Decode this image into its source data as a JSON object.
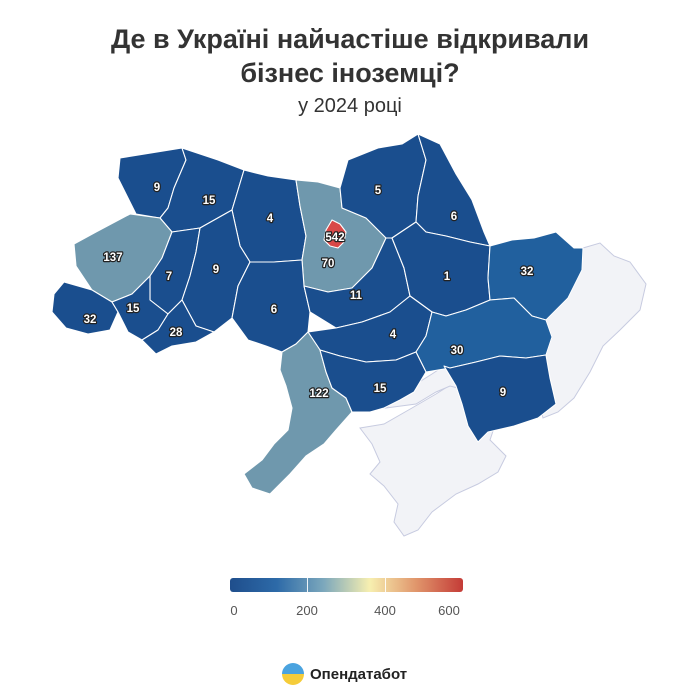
{
  "header": {
    "title_line1": "Де в Україні найчастіше відкривали",
    "title_line2": "бізнес іноземці?",
    "subtitle": "у 2024 році"
  },
  "legend": {
    "scale_min": 0,
    "scale_max": 600,
    "ticks": [
      "0",
      "200",
      "400",
      "600"
    ],
    "gradient_colors": [
      "#1f4e8c",
      "#2d6aa8",
      "#7ba7bc",
      "#f7efb0",
      "#e0956b",
      "#c43b37"
    ]
  },
  "colors": {
    "low": "#1a4e8e",
    "mid_low": "#21609e",
    "mid": "#6f98ad",
    "high": "#d94848",
    "no_data": "#f2f3f7"
  },
  "map_data": {
    "metric": "Кількість відкритих бізнесів іноземцями",
    "regions": [
      {
        "id": "volyn",
        "value": 9
      },
      {
        "id": "rivne",
        "value": 15
      },
      {
        "id": "zhytomyr",
        "value": 4
      },
      {
        "id": "kyiv-oblast",
        "value": 70
      },
      {
        "id": "kyiv-city",
        "value": 542
      },
      {
        "id": "chernihiv",
        "value": 5
      },
      {
        "id": "sumy",
        "value": 6
      },
      {
        "id": "lviv",
        "value": 137
      },
      {
        "id": "ternopil",
        "value": 7
      },
      {
        "id": "khmelnytskyi",
        "value": 9
      },
      {
        "id": "zakarpattia",
        "value": 32
      },
      {
        "id": "ivano-frankivsk",
        "value": 15
      },
      {
        "id": "chernivtsi",
        "value": 28
      },
      {
        "id": "vinnytsia",
        "value": 6
      },
      {
        "id": "cherkasy",
        "value": 11
      },
      {
        "id": "poltava",
        "value": 1
      },
      {
        "id": "kharkiv",
        "value": 32
      },
      {
        "id": "kirovohrad",
        "value": 4
      },
      {
        "id": "dnipropetrovsk",
        "value": 30
      },
      {
        "id": "odesa",
        "value": 122
      },
      {
        "id": "mykolaiv",
        "value": 15
      },
      {
        "id": "zaporizhzhia",
        "value": 9
      }
    ]
  },
  "brand": {
    "name": "Опендатабот"
  }
}
